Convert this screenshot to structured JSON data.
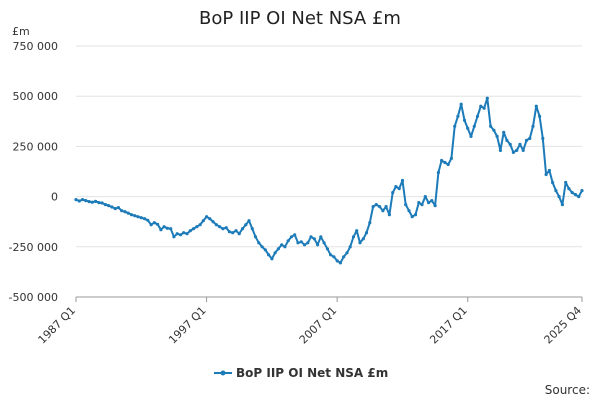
{
  "chart_data": {
    "type": "line",
    "title": "BoP IIP OI Net NSA £m",
    "unit_label": "£m",
    "xlabel": "",
    "ylabel": "",
    "x_range": [
      "1987 Q1",
      "2025 Q4"
    ],
    "x_ticks": [
      "1987 Q1",
      "1997 Q1",
      "2007 Q1",
      "2017 Q1",
      "2025 Q4"
    ],
    "y_ticks": [
      "750 000",
      "500 000",
      "250 000",
      "0",
      "-250 000",
      "-500 000"
    ],
    "y_tick_values": [
      750000,
      500000,
      250000,
      0,
      -250000,
      -500000
    ],
    "ylim": [
      -500000,
      750000
    ],
    "grid": true,
    "legend_position": "bottom-center",
    "source_label": "Source:",
    "series": [
      {
        "name": "BoP IIP OI Net NSA £m",
        "color": "#1c7bb8",
        "points": [
          [
            "1987 Q1",
            -15000
          ],
          [
            "1987 Q2",
            -22000
          ],
          [
            "1987 Q3",
            -15000
          ],
          [
            "1987 Q4",
            -20000
          ],
          [
            "1988 Q1",
            -25000
          ],
          [
            "1988 Q2",
            -28000
          ],
          [
            "1988 Q3",
            -24000
          ],
          [
            "1988 Q4",
            -30000
          ],
          [
            "1989 Q1",
            -32000
          ],
          [
            "1989 Q2",
            -40000
          ],
          [
            "1989 Q3",
            -45000
          ],
          [
            "1989 Q4",
            -52000
          ],
          [
            "1990 Q1",
            -60000
          ],
          [
            "1990 Q2",
            -55000
          ],
          [
            "1990 Q3",
            -70000
          ],
          [
            "1990 Q4",
            -75000
          ],
          [
            "1991 Q1",
            -82000
          ],
          [
            "1991 Q2",
            -90000
          ],
          [
            "1991 Q3",
            -95000
          ],
          [
            "1991 Q4",
            -100000
          ],
          [
            "1992 Q1",
            -105000
          ],
          [
            "1992 Q2",
            -110000
          ],
          [
            "1992 Q3",
            -118000
          ],
          [
            "1992 Q4",
            -140000
          ],
          [
            "1993 Q1",
            -130000
          ],
          [
            "1993 Q2",
            -138000
          ],
          [
            "1993 Q3",
            -165000
          ],
          [
            "1993 Q4",
            -150000
          ],
          [
            "1994 Q1",
            -158000
          ],
          [
            "1994 Q2",
            -160000
          ],
          [
            "1994 Q3",
            -200000
          ],
          [
            "1994 Q4",
            -185000
          ],
          [
            "1995 Q1",
            -190000
          ],
          [
            "1995 Q2",
            -180000
          ],
          [
            "1995 Q3",
            -185000
          ],
          [
            "1995 Q4",
            -170000
          ],
          [
            "1996 Q1",
            -160000
          ],
          [
            "1996 Q2",
            -150000
          ],
          [
            "1996 Q3",
            -140000
          ],
          [
            "1996 Q4",
            -120000
          ],
          [
            "1997 Q1",
            -100000
          ],
          [
            "1997 Q2",
            -110000
          ],
          [
            "1997 Q3",
            -125000
          ],
          [
            "1997 Q4",
            -140000
          ],
          [
            "1998 Q1",
            -150000
          ],
          [
            "1998 Q2",
            -160000
          ],
          [
            "1998 Q3",
            -155000
          ],
          [
            "1998 Q4",
            -175000
          ],
          [
            "1999 Q1",
            -180000
          ],
          [
            "1999 Q2",
            -170000
          ],
          [
            "1999 Q3",
            -185000
          ],
          [
            "1999 Q4",
            -160000
          ],
          [
            "2000 Q1",
            -140000
          ],
          [
            "2000 Q2",
            -120000
          ],
          [
            "2000 Q3",
            -160000
          ],
          [
            "2000 Q4",
            -200000
          ],
          [
            "2001 Q1",
            -230000
          ],
          [
            "2001 Q2",
            -250000
          ],
          [
            "2001 Q3",
            -265000
          ],
          [
            "2001 Q4",
            -290000
          ],
          [
            "2002 Q1",
            -310000
          ],
          [
            "2002 Q2",
            -280000
          ],
          [
            "2002 Q3",
            -260000
          ],
          [
            "2002 Q4",
            -240000
          ],
          [
            "2003 Q1",
            -250000
          ],
          [
            "2003 Q2",
            -220000
          ],
          [
            "2003 Q3",
            -200000
          ],
          [
            "2003 Q4",
            -190000
          ],
          [
            "2004 Q1",
            -230000
          ],
          [
            "2004 Q2",
            -225000
          ],
          [
            "2004 Q3",
            -240000
          ],
          [
            "2004 Q4",
            -230000
          ],
          [
            "2005 Q1",
            -200000
          ],
          [
            "2005 Q2",
            -210000
          ],
          [
            "2005 Q3",
            -240000
          ],
          [
            "2005 Q4",
            -200000
          ],
          [
            "2006 Q1",
            -230000
          ],
          [
            "2006 Q2",
            -260000
          ],
          [
            "2006 Q3",
            -290000
          ],
          [
            "2006 Q4",
            -300000
          ],
          [
            "2007 Q1",
            -320000
          ],
          [
            "2007 Q2",
            -330000
          ],
          [
            "2007 Q3",
            -300000
          ],
          [
            "2007 Q4",
            -280000
          ],
          [
            "2008 Q1",
            -250000
          ],
          [
            "2008 Q2",
            -200000
          ],
          [
            "2008 Q3",
            -170000
          ],
          [
            "2008 Q4",
            -230000
          ],
          [
            "2009 Q1",
            -210000
          ],
          [
            "2009 Q2",
            -180000
          ],
          [
            "2009 Q3",
            -130000
          ],
          [
            "2009 Q4",
            -50000
          ],
          [
            "2010 Q1",
            -40000
          ],
          [
            "2010 Q2",
            -50000
          ],
          [
            "2010 Q3",
            -70000
          ],
          [
            "2010 Q4",
            -50000
          ],
          [
            "2011 Q1",
            -90000
          ],
          [
            "2011 Q2",
            20000
          ],
          [
            "2011 Q3",
            50000
          ],
          [
            "2011 Q4",
            40000
          ],
          [
            "2012 Q1",
            80000
          ],
          [
            "2012 Q2",
            -40000
          ],
          [
            "2012 Q3",
            -70000
          ],
          [
            "2012 Q4",
            -100000
          ],
          [
            "2013 Q1",
            -90000
          ],
          [
            "2013 Q2",
            -30000
          ],
          [
            "2013 Q3",
            -40000
          ],
          [
            "2013 Q4",
            0
          ],
          [
            "2014 Q1",
            -30000
          ],
          [
            "2014 Q2",
            -20000
          ],
          [
            "2014 Q3",
            -45000
          ],
          [
            "2014 Q4",
            120000
          ],
          [
            "2015 Q1",
            180000
          ],
          [
            "2015 Q2",
            170000
          ],
          [
            "2015 Q3",
            160000
          ],
          [
            "2015 Q4",
            190000
          ],
          [
            "2016 Q1",
            350000
          ],
          [
            "2016 Q2",
            400000
          ],
          [
            "2016 Q3",
            460000
          ],
          [
            "2016 Q4",
            380000
          ],
          [
            "2017 Q1",
            340000
          ],
          [
            "2017 Q2",
            300000
          ],
          [
            "2017 Q3",
            350000
          ],
          [
            "2017 Q4",
            400000
          ],
          [
            "2018 Q1",
            450000
          ],
          [
            "2018 Q2",
            440000
          ],
          [
            "2018 Q3",
            490000
          ],
          [
            "2018 Q4",
            350000
          ],
          [
            "2019 Q1",
            330000
          ],
          [
            "2019 Q2",
            300000
          ],
          [
            "2019 Q3",
            230000
          ],
          [
            "2019 Q4",
            320000
          ],
          [
            "2020 Q1",
            280000
          ],
          [
            "2020 Q2",
            260000
          ],
          [
            "2020 Q3",
            220000
          ],
          [
            "2020 Q4",
            230000
          ],
          [
            "2021 Q1",
            260000
          ],
          [
            "2021 Q2",
            230000
          ],
          [
            "2021 Q3",
            280000
          ],
          [
            "2021 Q4",
            290000
          ],
          [
            "2022 Q1",
            350000
          ],
          [
            "2022 Q2",
            450000
          ],
          [
            "2022 Q3",
            400000
          ],
          [
            "2022 Q4",
            290000
          ],
          [
            "2023 Q1",
            110000
          ],
          [
            "2023 Q2",
            130000
          ],
          [
            "2023 Q3",
            70000
          ],
          [
            "2023 Q4",
            30000
          ],
          [
            "2024 Q1",
            0
          ],
          [
            "2024 Q2",
            -40000
          ],
          [
            "2024 Q3",
            70000
          ],
          [
            "2024 Q4",
            40000
          ],
          [
            "2025 Q1",
            20000
          ],
          [
            "2025 Q2",
            10000
          ],
          [
            "2025 Q3",
            0
          ],
          [
            "2025 Q4",
            30000
          ]
        ]
      }
    ]
  }
}
